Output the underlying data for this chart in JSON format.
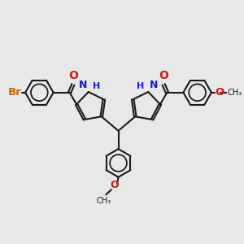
{
  "bg_color": "#e8e8e8",
  "bond_color": "#1a1a1a",
  "N_color": "#1a1acc",
  "O_color": "#cc1a1a",
  "Br_color": "#cc6600",
  "figsize": [
    3.0,
    3.0
  ],
  "dpi": 100,
  "xlim": [
    -1,
    11
  ],
  "ylim": [
    -1,
    11
  ]
}
